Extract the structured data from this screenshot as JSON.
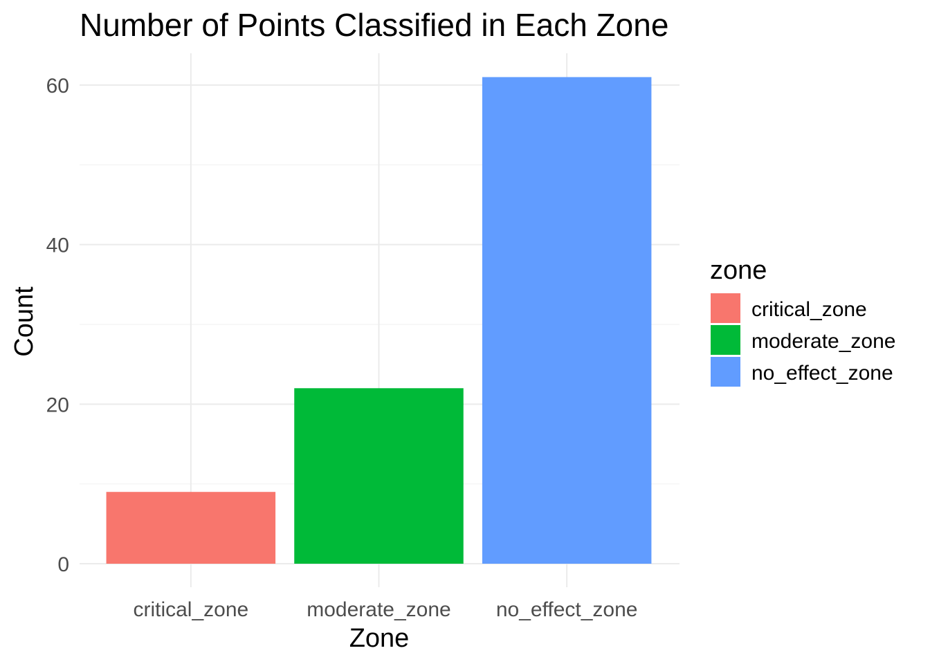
{
  "chart_data": {
    "type": "bar",
    "title": "Number of Points Classified in Each Zone",
    "xlabel": "Zone",
    "ylabel": "Count",
    "categories": [
      "critical_zone",
      "moderate_zone",
      "no_effect_zone"
    ],
    "values": [
      9,
      22,
      61
    ],
    "colors": [
      "#F8766D",
      "#00BA38",
      "#619CFF"
    ],
    "ylim": [
      0,
      64
    ],
    "yticks": [
      0,
      20,
      40,
      60
    ],
    "grid": true,
    "legend": {
      "title": "zone",
      "position": "right",
      "entries": [
        "critical_zone",
        "moderate_zone",
        "no_effect_zone"
      ]
    }
  }
}
